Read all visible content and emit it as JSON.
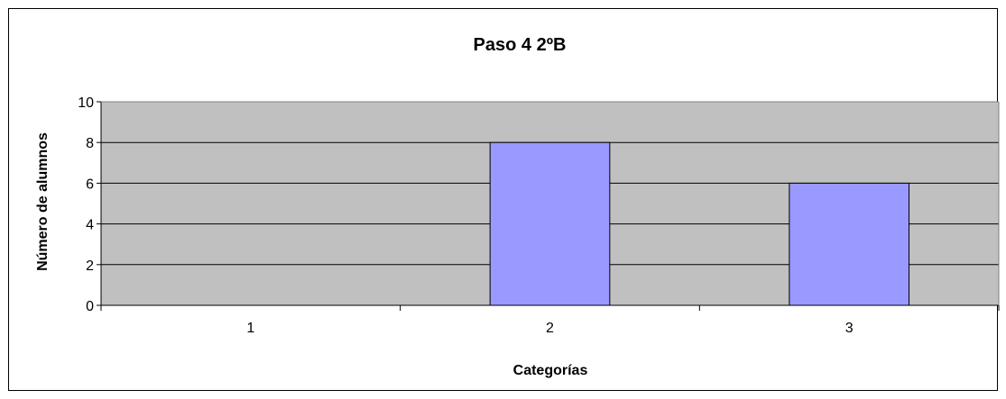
{
  "chart_data": {
    "type": "bar",
    "title": "Paso 4 2ºB",
    "xlabel": "Categorías",
    "ylabel": "Número de alumnos",
    "categories": [
      "1",
      "2",
      "3"
    ],
    "values": [
      0,
      8,
      6
    ],
    "ylim": [
      0,
      10
    ],
    "yticks": [
      "0",
      "2",
      "4",
      "6",
      "8",
      "10"
    ],
    "grid": true,
    "legend": "none",
    "colors": {
      "plot_background": "#c0c0c0",
      "bar_fill": "#9999ff",
      "gridline": "#000000"
    }
  }
}
